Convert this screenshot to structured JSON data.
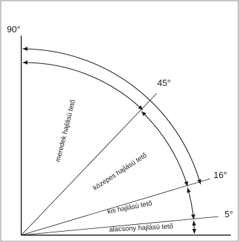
{
  "angles": {
    "a90": "90°",
    "a45": "45°",
    "a16": "16°",
    "a5": "5°"
  },
  "zones": {
    "meredek": "meredek hajlású tető",
    "kozepes": "közepes hajlású tető",
    "kis": "kis hajlású tető",
    "alacsony": "alacsony hajlású tető"
  },
  "colors": {
    "line": "#1a1a1a",
    "paper": "#ffffff",
    "frame": "#8a8a8a"
  }
}
